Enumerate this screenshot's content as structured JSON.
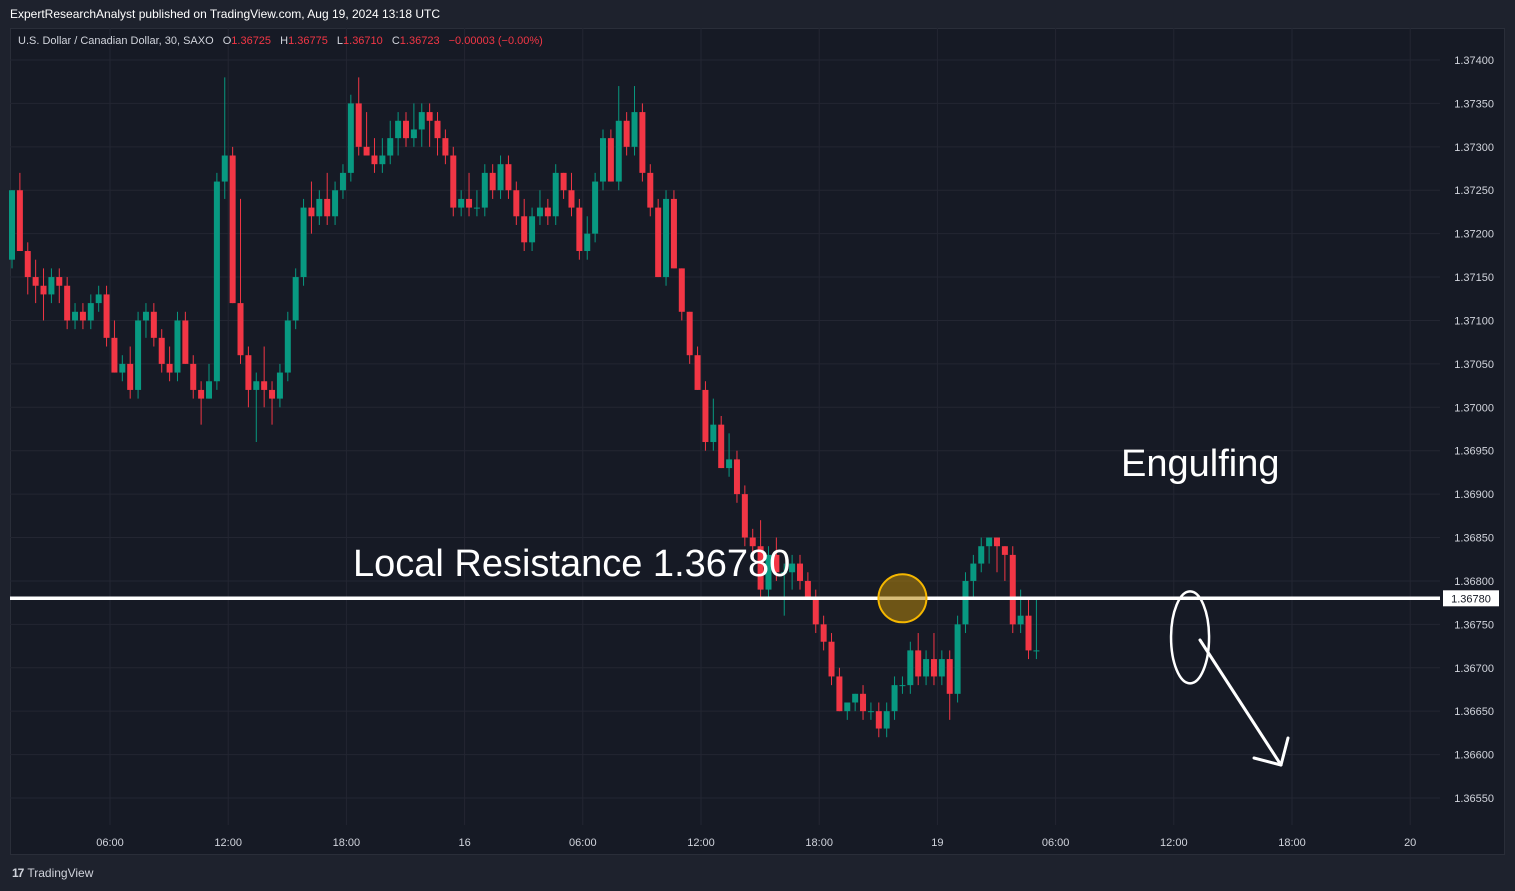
{
  "header": {
    "attribution": "ExpertResearchAnalyst published on TradingView.com, Aug 19, 2024 13:18 UTC"
  },
  "legend": {
    "symbol": "U.S. Dollar / Canadian Dollar, 30, SAXO",
    "open_label": "O",
    "open": "1.36725",
    "high_label": "H",
    "high": "1.36775",
    "low_label": "L",
    "low": "1.36710",
    "close_label": "C",
    "close": "1.36723",
    "change": "−0.00003 (−0.00%)"
  },
  "footer": {
    "brand": "TradingView",
    "brand_icon": "tradingview-logo-icon"
  },
  "colors": {
    "up": "#089981",
    "down": "#f23645",
    "background": "#161a25",
    "grid": "#232632",
    "line": "#ffffff",
    "circle_fill": "#b8860b",
    "circle_stroke": "#f5b700"
  },
  "chart_data": {
    "type": "candlestick",
    "timeframe": "30",
    "x_ticks": [
      "06:00",
      "12:00",
      "18:00",
      "16",
      "06:00",
      "12:00",
      "18:00",
      "19",
      "06:00",
      "12:00",
      "18:00",
      "20"
    ],
    "y_ticks": [
      "1.37400",
      "1.37350",
      "1.37300",
      "1.37250",
      "1.37200",
      "1.37150",
      "1.37100",
      "1.37050",
      "1.37000",
      "1.36950",
      "1.36900",
      "1.36850",
      "1.36800",
      "1.36750",
      "1.36700",
      "1.36650",
      "1.36600",
      "1.36550"
    ],
    "ylim": [
      1.3651,
      1.3744
    ],
    "candles": [
      [
        1.3717,
        1.3725,
        1.3716,
        1.3725
      ],
      [
        1.3725,
        1.3727,
        1.3718,
        1.3718
      ],
      [
        1.3718,
        1.3719,
        1.3713,
        1.3715
      ],
      [
        1.3715,
        1.3717,
        1.3712,
        1.3714
      ],
      [
        1.3714,
        1.3716,
        1.371,
        1.3713
      ],
      [
        1.3713,
        1.3716,
        1.3712,
        1.3715
      ],
      [
        1.3715,
        1.3716,
        1.3712,
        1.3714
      ],
      [
        1.3714,
        1.3715,
        1.3709,
        1.371
      ],
      [
        1.371,
        1.3712,
        1.3709,
        1.3711
      ],
      [
        1.3711,
        1.3712,
        1.3709,
        1.371
      ],
      [
        1.371,
        1.3713,
        1.3709,
        1.3712
      ],
      [
        1.3712,
        1.3714,
        1.3711,
        1.3713
      ],
      [
        1.3713,
        1.3714,
        1.3707,
        1.3708
      ],
      [
        1.3708,
        1.371,
        1.3704,
        1.3704
      ],
      [
        1.3704,
        1.3706,
        1.3703,
        1.3705
      ],
      [
        1.3705,
        1.3707,
        1.3701,
        1.3702
      ],
      [
        1.3702,
        1.3711,
        1.3701,
        1.371
      ],
      [
        1.371,
        1.3712,
        1.3708,
        1.3711
      ],
      [
        1.3711,
        1.3712,
        1.3707,
        1.3708
      ],
      [
        1.3708,
        1.3709,
        1.3704,
        1.3705
      ],
      [
        1.3705,
        1.3707,
        1.3703,
        1.3704
      ],
      [
        1.3704,
        1.3711,
        1.3703,
        1.371
      ],
      [
        1.371,
        1.3711,
        1.3705,
        1.3705
      ],
      [
        1.3705,
        1.3706,
        1.3701,
        1.3702
      ],
      [
        1.3702,
        1.3703,
        1.3698,
        1.3701
      ],
      [
        1.3701,
        1.3705,
        1.3701,
        1.3703
      ],
      [
        1.3703,
        1.3727,
        1.3702,
        1.3726
      ],
      [
        1.3726,
        1.3738,
        1.3724,
        1.3729
      ],
      [
        1.3729,
        1.373,
        1.3712,
        1.3712
      ],
      [
        1.3712,
        1.3724,
        1.3705,
        1.3706
      ],
      [
        1.3706,
        1.3707,
        1.37,
        1.3702
      ],
      [
        1.3702,
        1.3704,
        1.3696,
        1.3703
      ],
      [
        1.3703,
        1.3707,
        1.37,
        1.3702
      ],
      [
        1.3702,
        1.3703,
        1.3698,
        1.3701
      ],
      [
        1.3701,
        1.3705,
        1.37,
        1.3704
      ],
      [
        1.3704,
        1.3711,
        1.3703,
        1.371
      ],
      [
        1.371,
        1.3716,
        1.3709,
        1.3715
      ],
      [
        1.3715,
        1.3724,
        1.3714,
        1.3723
      ],
      [
        1.3723,
        1.3726,
        1.372,
        1.3722
      ],
      [
        1.3722,
        1.3725,
        1.3721,
        1.3724
      ],
      [
        1.3724,
        1.3727,
        1.3721,
        1.3722
      ],
      [
        1.3722,
        1.3726,
        1.3721,
        1.3725
      ],
      [
        1.3725,
        1.3728,
        1.3724,
        1.3727
      ],
      [
        1.3727,
        1.3736,
        1.3726,
        1.3735
      ],
      [
        1.3735,
        1.3738,
        1.3729,
        1.373
      ],
      [
        1.373,
        1.3734,
        1.3729,
        1.3729
      ],
      [
        1.3729,
        1.3731,
        1.3727,
        1.3728
      ],
      [
        1.3728,
        1.3731,
        1.3727,
        1.3729
      ],
      [
        1.3729,
        1.3733,
        1.3728,
        1.3731
      ],
      [
        1.3731,
        1.3734,
        1.3729,
        1.3733
      ],
      [
        1.3733,
        1.3734,
        1.373,
        1.3731
      ],
      [
        1.3731,
        1.3735,
        1.373,
        1.3732
      ],
      [
        1.3732,
        1.3735,
        1.373,
        1.3734
      ],
      [
        1.3734,
        1.3735,
        1.373,
        1.3733
      ],
      [
        1.3733,
        1.3734,
        1.3729,
        1.3731
      ],
      [
        1.3731,
        1.3732,
        1.3728,
        1.3729
      ],
      [
        1.3729,
        1.373,
        1.3722,
        1.3723
      ],
      [
        1.3723,
        1.3725,
        1.3722,
        1.3724
      ],
      [
        1.3724,
        1.3727,
        1.3722,
        1.3723
      ],
      [
        1.3723,
        1.3725,
        1.3722,
        1.3723
      ],
      [
        1.3723,
        1.3728,
        1.3722,
        1.3727
      ],
      [
        1.3727,
        1.3728,
        1.3724,
        1.3725
      ],
      [
        1.3725,
        1.3729,
        1.3724,
        1.3728
      ],
      [
        1.3728,
        1.3729,
        1.3724,
        1.3725
      ],
      [
        1.3725,
        1.3726,
        1.3721,
        1.3722
      ],
      [
        1.3722,
        1.3724,
        1.3718,
        1.3719
      ],
      [
        1.3719,
        1.3723,
        1.3718,
        1.3722
      ],
      [
        1.3722,
        1.3725,
        1.3721,
        1.3723
      ],
      [
        1.3723,
        1.3724,
        1.3721,
        1.3722
      ],
      [
        1.3722,
        1.3728,
        1.3721,
        1.3727
      ],
      [
        1.3727,
        1.3727,
        1.3724,
        1.3725
      ],
      [
        1.3725,
        1.3727,
        1.3722,
        1.3723
      ],
      [
        1.3723,
        1.3724,
        1.3717,
        1.3718
      ],
      [
        1.3718,
        1.3722,
        1.3717,
        1.372
      ],
      [
        1.372,
        1.3727,
        1.3719,
        1.3726
      ],
      [
        1.3726,
        1.3732,
        1.3725,
        1.3731
      ],
      [
        1.3731,
        1.3732,
        1.3726,
        1.3726
      ],
      [
        1.3726,
        1.3737,
        1.3725,
        1.3733
      ],
      [
        1.3733,
        1.3734,
        1.3729,
        1.373
      ],
      [
        1.373,
        1.3737,
        1.3729,
        1.3734
      ],
      [
        1.3734,
        1.3735,
        1.3726,
        1.3727
      ],
      [
        1.3727,
        1.3728,
        1.3722,
        1.3723
      ],
      [
        1.3723,
        1.3724,
        1.3715,
        1.3715
      ],
      [
        1.3715,
        1.3725,
        1.3714,
        1.3724
      ],
      [
        1.3724,
        1.3725,
        1.3716,
        1.3716
      ],
      [
        1.3716,
        1.3716,
        1.371,
        1.3711
      ],
      [
        1.3711,
        1.3711,
        1.3705,
        1.3706
      ],
      [
        1.3706,
        1.3707,
        1.3702,
        1.3702
      ],
      [
        1.3702,
        1.3703,
        1.3695,
        1.3696
      ],
      [
        1.3696,
        1.3701,
        1.3695,
        1.3698
      ],
      [
        1.3698,
        1.3699,
        1.3693,
        1.3693
      ],
      [
        1.3693,
        1.3697,
        1.3692,
        1.3694
      ],
      [
        1.3694,
        1.3695,
        1.3689,
        1.369
      ],
      [
        1.369,
        1.3691,
        1.3684,
        1.3685
      ],
      [
        1.3685,
        1.3686,
        1.3683,
        1.3684
      ],
      [
        1.3684,
        1.3687,
        1.3678,
        1.3679
      ],
      [
        1.3679,
        1.3684,
        1.3678,
        1.3683
      ],
      [
        1.3683,
        1.3685,
        1.368,
        1.3681
      ],
      [
        1.3681,
        1.3682,
        1.3676,
        1.3681
      ],
      [
        1.3681,
        1.3683,
        1.3679,
        1.3682
      ],
      [
        1.3682,
        1.3683,
        1.3679,
        1.368
      ],
      [
        1.368,
        1.3681,
        1.3678,
        1.3678
      ],
      [
        1.3678,
        1.3679,
        1.3674,
        1.3675
      ],
      [
        1.3675,
        1.3676,
        1.3672,
        1.3673
      ],
      [
        1.3673,
        1.3674,
        1.3668,
        1.3669
      ],
      [
        1.3669,
        1.367,
        1.3665,
        1.3665
      ],
      [
        1.3665,
        1.3666,
        1.3664,
        1.3666
      ],
      [
        1.3666,
        1.3667,
        1.3665,
        1.3667
      ],
      [
        1.3667,
        1.3668,
        1.3664,
        1.3665
      ],
      [
        1.3665,
        1.3666,
        1.3664,
        1.3665
      ],
      [
        1.3665,
        1.3666,
        1.3662,
        1.3663
      ],
      [
        1.3663,
        1.3666,
        1.3662,
        1.3665
      ],
      [
        1.3665,
        1.3669,
        1.3664,
        1.3668
      ],
      [
        1.3668,
        1.3669,
        1.3667,
        1.3668
      ],
      [
        1.3668,
        1.3673,
        1.3667,
        1.3672
      ],
      [
        1.3672,
        1.3674,
        1.3668,
        1.3669
      ],
      [
        1.3669,
        1.3672,
        1.3668,
        1.3671
      ],
      [
        1.3671,
        1.3674,
        1.3668,
        1.3669
      ],
      [
        1.3669,
        1.3672,
        1.3668,
        1.3671
      ],
      [
        1.3671,
        1.3672,
        1.3664,
        1.3667
      ],
      [
        1.3667,
        1.3676,
        1.3666,
        1.3675
      ],
      [
        1.3675,
        1.3681,
        1.3674,
        1.368
      ],
      [
        1.368,
        1.3683,
        1.3678,
        1.3682
      ],
      [
        1.3682,
        1.3685,
        1.3681,
        1.3684
      ],
      [
        1.3684,
        1.3685,
        1.3682,
        1.3685
      ],
      [
        1.3685,
        1.3685,
        1.3681,
        1.3684
      ],
      [
        1.3684,
        1.3684,
        1.368,
        1.3683
      ],
      [
        1.3683,
        1.3684,
        1.3674,
        1.3675
      ],
      [
        1.3675,
        1.3679,
        1.3674,
        1.3676
      ],
      [
        1.3676,
        1.3678,
        1.3671,
        1.3672
      ],
      [
        1.3672,
        1.3678,
        1.3671,
        1.3672
      ]
    ],
    "horizontal_line": {
      "price": 1.3678,
      "price_label": "1.36780"
    },
    "annotations": {
      "resistance_label": "Local Resistance 1.36780",
      "pattern_label": "Engulfing"
    }
  }
}
